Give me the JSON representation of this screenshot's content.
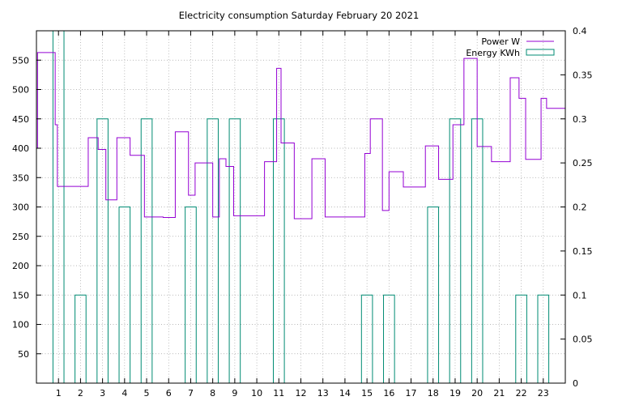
{
  "chart_data": {
    "type": "line",
    "title": "Electricity consumption Saturday February 20 2021",
    "xlim": [
      0,
      24
    ],
    "x_ticks": [
      "1",
      "2",
      "3",
      "4",
      "5",
      "6",
      "7",
      "8",
      "9",
      "10",
      "11",
      "12",
      "13",
      "14",
      "15",
      "16",
      "17",
      "18",
      "19",
      "20",
      "21",
      "22",
      "23"
    ],
    "y_left": {
      "ylim": [
        0,
        600
      ],
      "ticks": [
        "50",
        "100",
        "150",
        "200",
        "250",
        "300",
        "350",
        "400",
        "450",
        "500",
        "550"
      ]
    },
    "y_right": {
      "ylim": [
        0,
        0.4
      ],
      "ticks": [
        "0",
        "0.05",
        "0.1",
        "0.15",
        "0.2",
        "0.25",
        "0.3",
        "0.35",
        "0.4"
      ]
    },
    "grid": true,
    "legend_position": "top-right",
    "series": [
      {
        "name": "Power W",
        "axis": "left",
        "color": "#9400d3",
        "style": "step",
        "points": [
          [
            0.0,
            400
          ],
          [
            0.05,
            563
          ],
          [
            0.8,
            563
          ],
          [
            0.85,
            440
          ],
          [
            0.95,
            335
          ],
          [
            2.3,
            335
          ],
          [
            2.35,
            418
          ],
          [
            2.75,
            418
          ],
          [
            2.8,
            398
          ],
          [
            3.1,
            398
          ],
          [
            3.15,
            312
          ],
          [
            3.6,
            312
          ],
          [
            3.65,
            418
          ],
          [
            4.2,
            418
          ],
          [
            4.25,
            388
          ],
          [
            4.85,
            388
          ],
          [
            4.9,
            283
          ],
          [
            5.7,
            283
          ],
          [
            5.75,
            282
          ],
          [
            6.25,
            282
          ],
          [
            6.3,
            428
          ],
          [
            6.85,
            428
          ],
          [
            6.9,
            320
          ],
          [
            7.15,
            320
          ],
          [
            7.2,
            375
          ],
          [
            7.95,
            375
          ],
          [
            8.0,
            283
          ],
          [
            8.25,
            283
          ],
          [
            8.3,
            382
          ],
          [
            8.55,
            382
          ],
          [
            8.6,
            369
          ],
          [
            8.9,
            369
          ],
          [
            8.95,
            285
          ],
          [
            10.3,
            285
          ],
          [
            10.35,
            377
          ],
          [
            10.85,
            377
          ],
          [
            10.9,
            536
          ],
          [
            11.05,
            536
          ],
          [
            11.1,
            409
          ],
          [
            11.65,
            409
          ],
          [
            11.7,
            280
          ],
          [
            12.45,
            280
          ],
          [
            12.5,
            382
          ],
          [
            13.05,
            382
          ],
          [
            13.1,
            283
          ],
          [
            14.85,
            283
          ],
          [
            14.9,
            391
          ],
          [
            15.1,
            391
          ],
          [
            15.15,
            450
          ],
          [
            15.65,
            450
          ],
          [
            15.7,
            294
          ],
          [
            15.95,
            294
          ],
          [
            16.0,
            360
          ],
          [
            16.6,
            360
          ],
          [
            16.65,
            334
          ],
          [
            17.6,
            334
          ],
          [
            17.65,
            404
          ],
          [
            18.2,
            404
          ],
          [
            18.25,
            347
          ],
          [
            18.85,
            347
          ],
          [
            18.9,
            440
          ],
          [
            19.35,
            440
          ],
          [
            19.4,
            553
          ],
          [
            19.95,
            553
          ],
          [
            20.0,
            403
          ],
          [
            20.6,
            403
          ],
          [
            20.65,
            377
          ],
          [
            21.45,
            377
          ],
          [
            21.5,
            520
          ],
          [
            21.85,
            520
          ],
          [
            21.9,
            485
          ],
          [
            22.15,
            485
          ],
          [
            22.2,
            381
          ],
          [
            22.85,
            381
          ],
          [
            22.9,
            485
          ],
          [
            23.1,
            485
          ],
          [
            23.15,
            468
          ],
          [
            24.0,
            468
          ],
          [
            24.05,
            465
          ],
          [
            24.8,
            465
          ]
        ]
      },
      {
        "name": "Energy KWh",
        "axis": "right",
        "color": "#008b73",
        "style": "bars",
        "hours": [
          0,
          1,
          2,
          3,
          4,
          5,
          6,
          7,
          8,
          9,
          10,
          11,
          12,
          13,
          14,
          15,
          16,
          17,
          18,
          19,
          20,
          21,
          22,
          23
        ],
        "values": [
          0.4,
          0.1,
          0.3,
          0.2,
          0.3,
          0,
          0.2,
          0.3,
          0.3,
          0,
          0.3,
          0,
          0,
          0,
          0.1,
          0.1,
          0,
          0.2,
          0.3,
          0.3,
          0,
          0.1,
          0.1,
          0
        ]
      }
    ]
  }
}
